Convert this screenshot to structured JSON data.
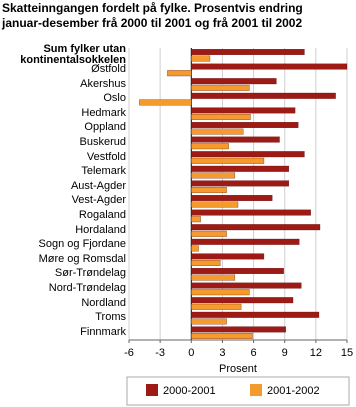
{
  "chart_data": {
    "type": "grouped-hbar",
    "title": [
      "Skatteinngangen fordelt på fylke. Prosentvis endring",
      "januar-desember frå 2000 til 2001 og frå 2001 til 2002"
    ],
    "x_label": "Prosent",
    "categories": [
      "Sum fylker utan kontinentalsokkelen",
      "Østfold",
      "Akershus",
      "Oslo",
      "Hedmark",
      "Oppland",
      "Buskerud",
      "Vestfold",
      "Telemark",
      "Aust-Agder",
      "Vest-Agder",
      "Rogaland",
      "Hordaland",
      "Sogn og Fjordane",
      "Møre og Romsdal",
      "Sør-Trøndelag",
      "Nord-Trøndelag",
      "Nordland",
      "Troms",
      "Finnmark"
    ],
    "series": [
      {
        "name": "2000-2001",
        "color": "#9e1a15",
        "values": [
          10.9,
          15,
          8.2,
          13.9,
          10.0,
          10.3,
          8.5,
          10.9,
          9.4,
          9.4,
          7.8,
          11.5,
          12.4,
          10.4,
          7.0,
          8.9,
          10.6,
          9.8,
          12.3,
          9.1
        ]
      },
      {
        "name": "2001-2002",
        "color": "#f59a2c",
        "values": [
          1.8,
          -2.3,
          5.6,
          -5.0,
          5.7,
          5.0,
          3.6,
          7.0,
          4.2,
          3.4,
          4.5,
          0.9,
          3.4,
          0.7,
          2.8,
          4.2,
          5.6,
          4.8,
          3.4,
          5.9
        ]
      }
    ],
    "xlim": [
      -6,
      15
    ],
    "xticks": [
      -6,
      -3,
      0,
      3,
      6,
      9,
      12,
      15
    ],
    "grid": true
  }
}
